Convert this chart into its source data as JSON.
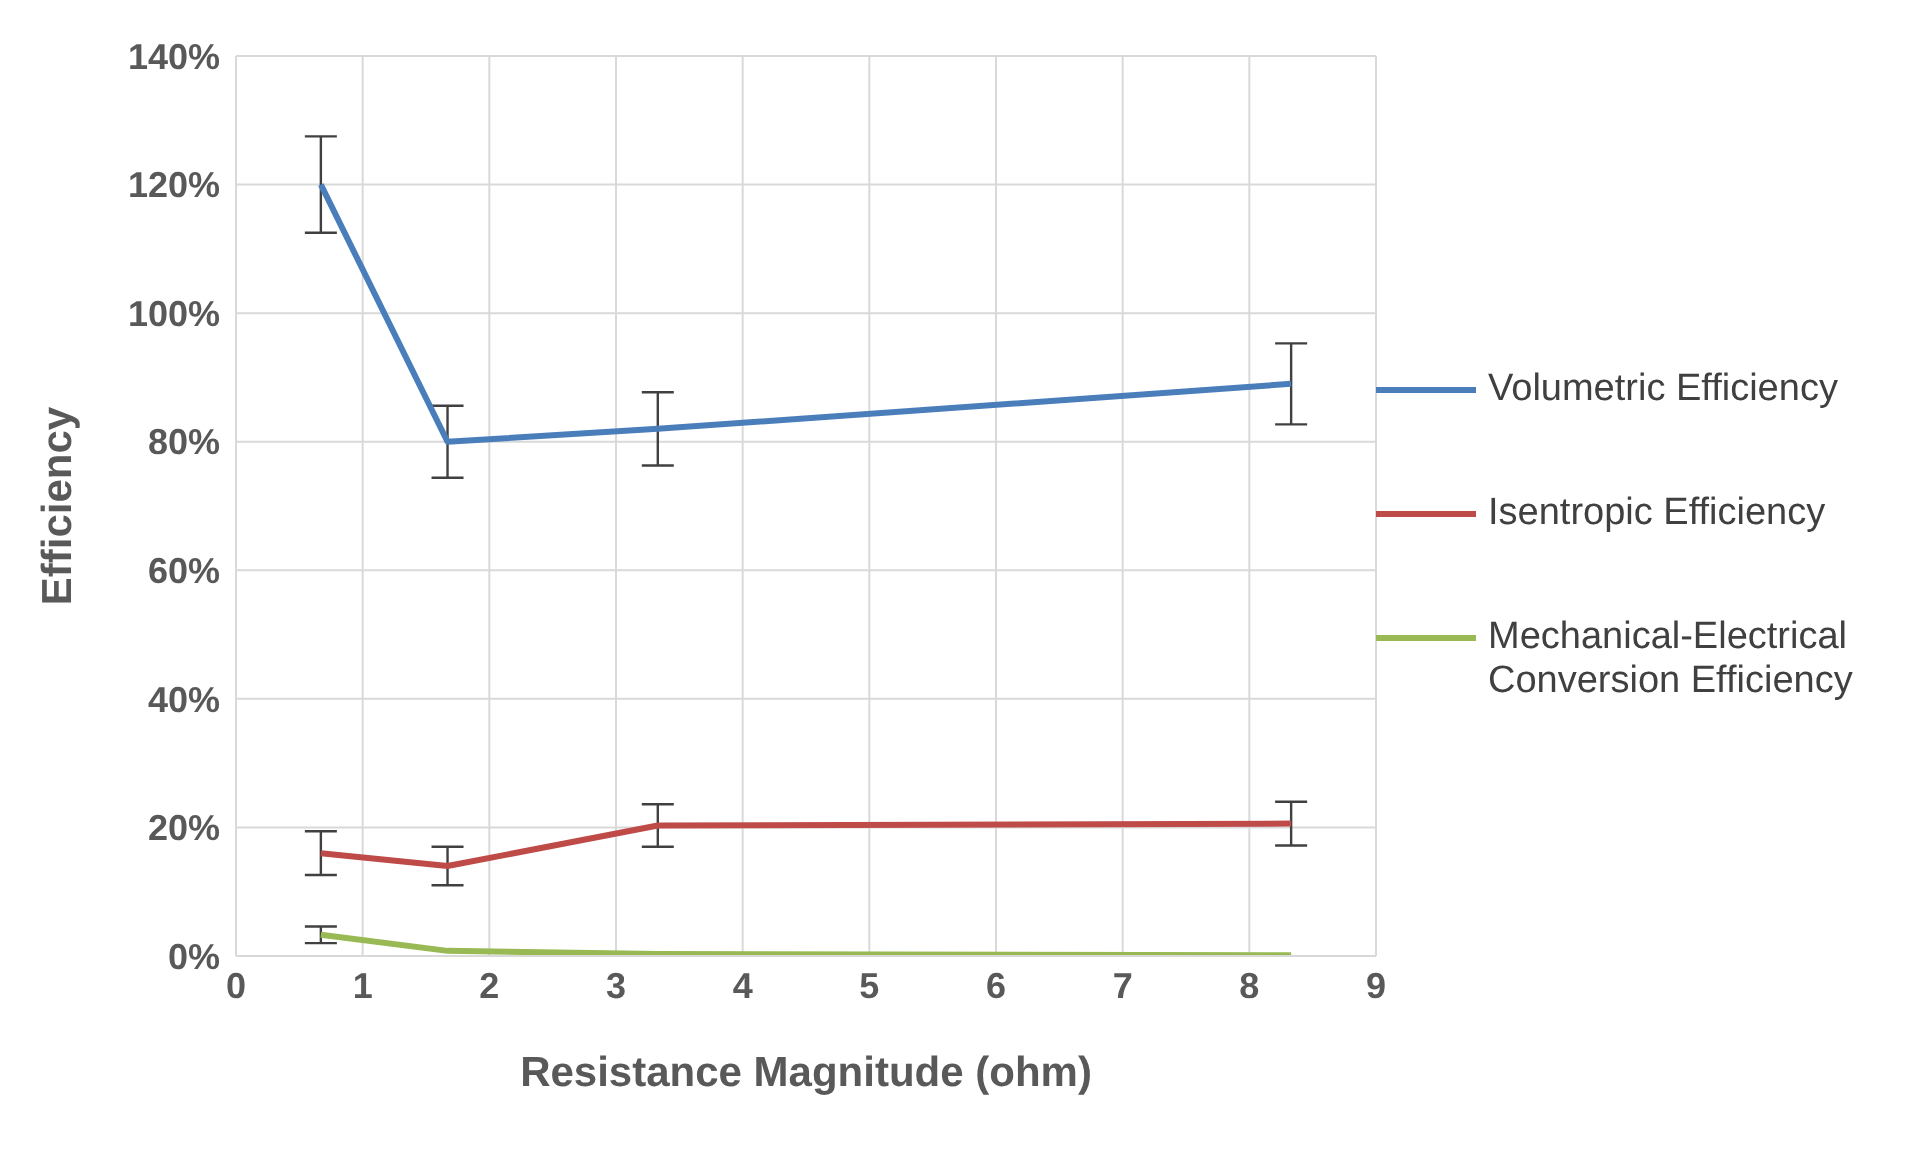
{
  "chart_data": {
    "type": "line",
    "xlabel": "Resistance Magnitude (ohm)",
    "ylabel": "Efficiency",
    "xlim": [
      0,
      9
    ],
    "xticks": [
      0,
      1,
      2,
      3,
      4,
      5,
      6,
      7,
      8,
      9
    ],
    "ylim": [
      0,
      140
    ],
    "yticks": [
      {
        "value": 0,
        "label": "0%"
      },
      {
        "value": 20,
        "label": "20%"
      },
      {
        "value": 40,
        "label": "40%"
      },
      {
        "value": 60,
        "label": "60%"
      },
      {
        "value": 80,
        "label": "80%"
      },
      {
        "value": 100,
        "label": "100%"
      },
      {
        "value": 120,
        "label": "120%"
      },
      {
        "value": 140,
        "label": "140%"
      }
    ],
    "x": [
      0.67,
      1.67,
      3.33,
      8.33
    ],
    "series": [
      {
        "name": "Volumetric Efficiency",
        "color": "#4a7ebb",
        "values": [
          120,
          80,
          82,
          89
        ],
        "errors": [
          7.5,
          5.6,
          5.7,
          6.3
        ]
      },
      {
        "name": "Isentropic Efficiency",
        "color": "#be4b48",
        "values": [
          16,
          14,
          20.3,
          20.6
        ],
        "errors": [
          3.4,
          3,
          3.3,
          3.4
        ]
      },
      {
        "name": "Mechanical-Electrical Conversion Efficiency",
        "color": "#98b954",
        "values": [
          3.3,
          0.8,
          0.3,
          0.1
        ],
        "errors": [
          1.3,
          null,
          null,
          null
        ]
      }
    ],
    "grid": true,
    "legend": "right",
    "marker": "none",
    "line_style": "solid"
  }
}
